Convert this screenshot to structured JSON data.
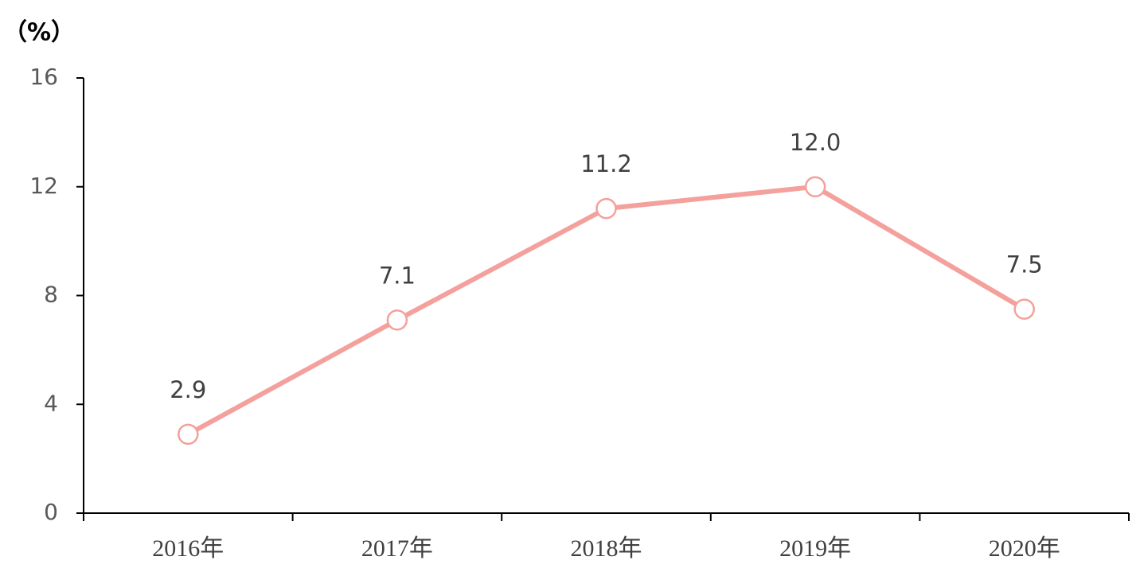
{
  "chart_data": {
    "type": "line",
    "y_label": "（%）",
    "categories": [
      "2016年",
      "2017年",
      "2018年",
      "2019年",
      "2020年"
    ],
    "values": [
      2.9,
      7.1,
      11.2,
      12.0,
      7.5
    ],
    "value_labels": [
      "2.9",
      "7.1",
      "11.2",
      "12.0",
      "7.5"
    ],
    "color": "#f4a09c",
    "ylim": [
      0,
      16
    ],
    "yticks": [
      0,
      4,
      8,
      12,
      16
    ],
    "grid": false
  }
}
